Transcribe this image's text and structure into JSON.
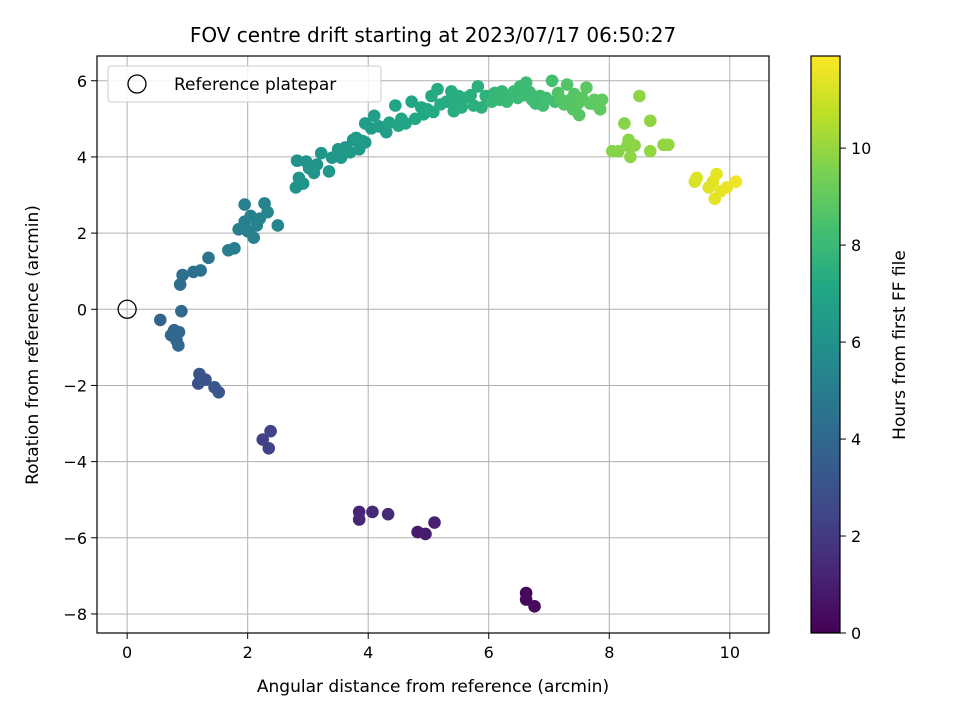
{
  "chart_data": {
    "type": "scatter",
    "title": "FOV centre drift starting at 2023/07/17 06:50:27",
    "xlabel": "Angular distance from reference (arcmin)",
    "ylabel": "Rotation from reference (arcmin)",
    "xlim": [
      -0.5,
      10.65
    ],
    "ylim": [
      -8.5,
      6.65
    ],
    "xticks": [
      0,
      2,
      4,
      6,
      8,
      10
    ],
    "yticks": [
      -8,
      -6,
      -4,
      -2,
      0,
      2,
      4,
      6
    ],
    "xtick_labels": [
      "0",
      "2",
      "4",
      "6",
      "8",
      "10"
    ],
    "ytick_labels": [
      "−8",
      "−6",
      "−4",
      "−2",
      "0",
      "2",
      "4",
      "6"
    ],
    "grid": true,
    "legend": {
      "position": "top-left",
      "entries": [
        "Reference platepar"
      ]
    },
    "colorbar": {
      "label": "Hours from first FF file",
      "range": [
        0,
        11.9
      ],
      "ticks": [
        0,
        2,
        4,
        6,
        8,
        10
      ],
      "tick_labels": [
        "0",
        "2",
        "4",
        "6",
        "8",
        "10"
      ],
      "colormap": "viridis"
    },
    "reference_point": {
      "x": 0,
      "y": 0
    },
    "series": [
      {
        "points": [
          {
            "x": 6.62,
            "y": -7.45,
            "h": 0.2
          },
          {
            "x": 6.62,
            "y": -7.62,
            "h": 0.25
          },
          {
            "x": 6.76,
            "y": -7.8,
            "h": 0.3
          },
          {
            "x": 4.82,
            "y": -5.85,
            "h": 0.85
          },
          {
            "x": 4.95,
            "y": -5.9,
            "h": 0.9
          },
          {
            "x": 5.1,
            "y": -5.6,
            "h": 1.0
          },
          {
            "x": 3.85,
            "y": -5.32,
            "h": 1.2
          },
          {
            "x": 3.85,
            "y": -5.52,
            "h": 1.25
          },
          {
            "x": 4.07,
            "y": -5.32,
            "h": 1.3
          },
          {
            "x": 4.33,
            "y": -5.38,
            "h": 1.4
          },
          {
            "x": 2.25,
            "y": -3.42,
            "h": 2.3
          },
          {
            "x": 2.35,
            "y": -3.65,
            "h": 2.35
          },
          {
            "x": 2.38,
            "y": -3.2,
            "h": 2.4
          },
          {
            "x": 1.18,
            "y": -1.95,
            "h": 3.0
          },
          {
            "x": 1.2,
            "y": -1.7,
            "h": 3.05
          },
          {
            "x": 1.3,
            "y": -1.85,
            "h": 3.1
          },
          {
            "x": 1.45,
            "y": -2.05,
            "h": 3.15
          },
          {
            "x": 1.52,
            "y": -2.18,
            "h": 3.2
          },
          {
            "x": 0.55,
            "y": -0.28,
            "h": 3.8
          },
          {
            "x": 0.73,
            "y": -0.68,
            "h": 3.85
          },
          {
            "x": 0.78,
            "y": -0.55,
            "h": 3.9
          },
          {
            "x": 0.82,
            "y": -0.82,
            "h": 3.95
          },
          {
            "x": 0.85,
            "y": -0.95,
            "h": 4.0
          },
          {
            "x": 0.86,
            "y": -0.6,
            "h": 4.02
          },
          {
            "x": 0.9,
            "y": -0.05,
            "h": 4.05
          },
          {
            "x": 0.88,
            "y": 0.65,
            "h": 4.3
          },
          {
            "x": 0.92,
            "y": 0.9,
            "h": 4.35
          },
          {
            "x": 1.1,
            "y": 0.98,
            "h": 4.4
          },
          {
            "x": 1.22,
            "y": 1.02,
            "h": 4.45
          },
          {
            "x": 1.35,
            "y": 1.35,
            "h": 4.55
          },
          {
            "x": 1.68,
            "y": 1.55,
            "h": 5.0
          },
          {
            "x": 1.78,
            "y": 1.6,
            "h": 5.05
          },
          {
            "x": 1.85,
            "y": 2.1,
            "h": 5.1
          },
          {
            "x": 1.95,
            "y": 2.3,
            "h": 5.12
          },
          {
            "x": 1.95,
            "y": 2.75,
            "h": 5.15
          },
          {
            "x": 2.0,
            "y": 2.05,
            "h": 5.18
          },
          {
            "x": 2.05,
            "y": 2.45,
            "h": 5.2
          },
          {
            "x": 2.1,
            "y": 1.88,
            "h": 5.22
          },
          {
            "x": 2.15,
            "y": 2.2,
            "h": 5.25
          },
          {
            "x": 2.2,
            "y": 2.38,
            "h": 5.28
          },
          {
            "x": 2.28,
            "y": 2.78,
            "h": 5.3
          },
          {
            "x": 2.33,
            "y": 2.55,
            "h": 5.33
          },
          {
            "x": 2.5,
            "y": 2.2,
            "h": 5.4
          },
          {
            "x": 2.8,
            "y": 3.2,
            "h": 6.0
          },
          {
            "x": 2.82,
            "y": 3.9,
            "h": 6.02
          },
          {
            "x": 2.85,
            "y": 3.45,
            "h": 6.05
          },
          {
            "x": 2.92,
            "y": 3.3,
            "h": 6.08
          },
          {
            "x": 2.97,
            "y": 3.88,
            "h": 6.1
          },
          {
            "x": 3.02,
            "y": 3.7,
            "h": 6.12
          },
          {
            "x": 3.1,
            "y": 3.58,
            "h": 6.15
          },
          {
            "x": 3.15,
            "y": 3.8,
            "h": 6.18
          },
          {
            "x": 3.22,
            "y": 4.1,
            "h": 6.2
          },
          {
            "x": 3.35,
            "y": 3.62,
            "h": 6.22
          },
          {
            "x": 3.4,
            "y": 3.98,
            "h": 6.25
          },
          {
            "x": 3.5,
            "y": 4.2,
            "h": 6.28
          },
          {
            "x": 3.55,
            "y": 3.98,
            "h": 6.3
          },
          {
            "x": 3.62,
            "y": 4.25,
            "h": 6.32
          },
          {
            "x": 3.7,
            "y": 4.12,
            "h": 6.35
          },
          {
            "x": 3.75,
            "y": 4.45,
            "h": 6.38
          },
          {
            "x": 3.8,
            "y": 4.5,
            "h": 6.4
          },
          {
            "x": 3.85,
            "y": 4.2,
            "h": 6.42
          },
          {
            "x": 3.9,
            "y": 4.42,
            "h": 6.45
          },
          {
            "x": 3.95,
            "y": 4.38,
            "h": 6.48
          },
          {
            "x": 3.95,
            "y": 4.88,
            "h": 6.5
          },
          {
            "x": 4.05,
            "y": 4.75,
            "h": 6.52
          },
          {
            "x": 4.1,
            "y": 5.08,
            "h": 6.55
          },
          {
            "x": 4.18,
            "y": 4.8,
            "h": 6.58
          },
          {
            "x": 4.3,
            "y": 4.65,
            "h": 6.6
          },
          {
            "x": 4.35,
            "y": 4.9,
            "h": 6.9
          },
          {
            "x": 4.45,
            "y": 5.35,
            "h": 6.95
          },
          {
            "x": 4.5,
            "y": 4.82,
            "h": 7.0
          },
          {
            "x": 4.55,
            "y": 5.0,
            "h": 7.02
          },
          {
            "x": 4.62,
            "y": 4.88,
            "h": 7.05
          },
          {
            "x": 4.72,
            "y": 5.45,
            "h": 7.08
          },
          {
            "x": 4.78,
            "y": 5.0,
            "h": 7.1
          },
          {
            "x": 4.88,
            "y": 5.3,
            "h": 7.12
          },
          {
            "x": 4.92,
            "y": 5.12,
            "h": 7.15
          },
          {
            "x": 4.98,
            "y": 5.25,
            "h": 7.18
          },
          {
            "x": 5.05,
            "y": 5.6,
            "h": 7.2
          },
          {
            "x": 5.08,
            "y": 5.18,
            "h": 7.22
          },
          {
            "x": 5.15,
            "y": 5.78,
            "h": 7.25
          },
          {
            "x": 5.2,
            "y": 5.38,
            "h": 7.28
          },
          {
            "x": 5.3,
            "y": 5.45,
            "h": 7.3
          },
          {
            "x": 5.38,
            "y": 5.72,
            "h": 7.32
          },
          {
            "x": 5.42,
            "y": 5.2,
            "h": 7.35
          },
          {
            "x": 5.45,
            "y": 5.45,
            "h": 7.38
          },
          {
            "x": 5.5,
            "y": 5.6,
            "h": 7.4
          },
          {
            "x": 5.55,
            "y": 5.3,
            "h": 7.42
          },
          {
            "x": 5.6,
            "y": 5.55,
            "h": 7.45
          },
          {
            "x": 5.7,
            "y": 5.62,
            "h": 7.48
          },
          {
            "x": 5.75,
            "y": 5.35,
            "h": 7.5
          },
          {
            "x": 5.82,
            "y": 5.85,
            "h": 7.52
          },
          {
            "x": 5.88,
            "y": 5.3,
            "h": 7.55
          },
          {
            "x": 5.95,
            "y": 5.6,
            "h": 7.58
          },
          {
            "x": 6.05,
            "y": 5.45,
            "h": 7.85
          },
          {
            "x": 6.1,
            "y": 5.68,
            "h": 7.88
          },
          {
            "x": 6.18,
            "y": 5.5,
            "h": 7.9
          },
          {
            "x": 6.22,
            "y": 5.72,
            "h": 7.92
          },
          {
            "x": 6.3,
            "y": 5.45,
            "h": 7.95
          },
          {
            "x": 6.35,
            "y": 5.6,
            "h": 7.98
          },
          {
            "x": 6.42,
            "y": 5.72,
            "h": 8.0
          },
          {
            "x": 6.48,
            "y": 5.55,
            "h": 8.02
          },
          {
            "x": 6.52,
            "y": 5.85,
            "h": 8.05
          },
          {
            "x": 6.58,
            "y": 5.62,
            "h": 8.08
          },
          {
            "x": 6.62,
            "y": 5.95,
            "h": 8.1
          },
          {
            "x": 6.68,
            "y": 5.7,
            "h": 8.12
          },
          {
            "x": 6.72,
            "y": 5.5,
            "h": 8.15
          },
          {
            "x": 6.78,
            "y": 5.4,
            "h": 8.18
          },
          {
            "x": 6.85,
            "y": 5.6,
            "h": 8.2
          },
          {
            "x": 6.9,
            "y": 5.35,
            "h": 8.22
          },
          {
            "x": 6.95,
            "y": 5.55,
            "h": 8.25
          },
          {
            "x": 7.05,
            "y": 6.0,
            "h": 8.28
          },
          {
            "x": 7.1,
            "y": 5.45,
            "h": 8.3
          },
          {
            "x": 7.15,
            "y": 5.68,
            "h": 8.6
          },
          {
            "x": 7.2,
            "y": 5.5,
            "h": 8.62
          },
          {
            "x": 7.25,
            "y": 5.38,
            "h": 8.65
          },
          {
            "x": 7.3,
            "y": 5.9,
            "h": 8.68
          },
          {
            "x": 7.35,
            "y": 5.5,
            "h": 8.7
          },
          {
            "x": 7.4,
            "y": 5.25,
            "h": 8.72
          },
          {
            "x": 7.42,
            "y": 5.65,
            "h": 8.75
          },
          {
            "x": 7.48,
            "y": 5.4,
            "h": 8.78
          },
          {
            "x": 7.5,
            "y": 5.1,
            "h": 8.8
          },
          {
            "x": 7.55,
            "y": 5.55,
            "h": 8.82
          },
          {
            "x": 7.62,
            "y": 5.82,
            "h": 8.85
          },
          {
            "x": 7.68,
            "y": 5.4,
            "h": 8.88
          },
          {
            "x": 7.75,
            "y": 5.5,
            "h": 8.9
          },
          {
            "x": 7.8,
            "y": 5.35,
            "h": 8.92
          },
          {
            "x": 7.85,
            "y": 5.25,
            "h": 8.95
          },
          {
            "x": 7.88,
            "y": 5.5,
            "h": 8.98
          },
          {
            "x": 8.05,
            "y": 4.15,
            "h": 9.7
          },
          {
            "x": 8.15,
            "y": 4.15,
            "h": 9.72
          },
          {
            "x": 8.25,
            "y": 4.88,
            "h": 9.75
          },
          {
            "x": 8.3,
            "y": 4.3,
            "h": 9.78
          },
          {
            "x": 8.32,
            "y": 4.45,
            "h": 9.8
          },
          {
            "x": 8.35,
            "y": 4.0,
            "h": 9.82
          },
          {
            "x": 8.42,
            "y": 4.3,
            "h": 9.85
          },
          {
            "x": 8.5,
            "y": 5.6,
            "h": 9.88
          },
          {
            "x": 8.68,
            "y": 4.95,
            "h": 9.9
          },
          {
            "x": 8.68,
            "y": 4.15,
            "h": 9.92
          },
          {
            "x": 8.9,
            "y": 4.32,
            "h": 9.95
          },
          {
            "x": 8.98,
            "y": 4.32,
            "h": 9.98
          },
          {
            "x": 9.42,
            "y": 3.35,
            "h": 11.2
          },
          {
            "x": 9.45,
            "y": 3.45,
            "h": 11.25
          },
          {
            "x": 9.65,
            "y": 3.2,
            "h": 11.3
          },
          {
            "x": 9.72,
            "y": 3.35,
            "h": 11.35
          },
          {
            "x": 9.75,
            "y": 2.9,
            "h": 11.4
          },
          {
            "x": 9.78,
            "y": 3.55,
            "h": 11.45
          },
          {
            "x": 9.85,
            "y": 3.1,
            "h": 11.5
          },
          {
            "x": 9.95,
            "y": 3.2,
            "h": 11.55
          },
          {
            "x": 10.1,
            "y": 3.35,
            "h": 11.6
          }
        ]
      }
    ]
  }
}
